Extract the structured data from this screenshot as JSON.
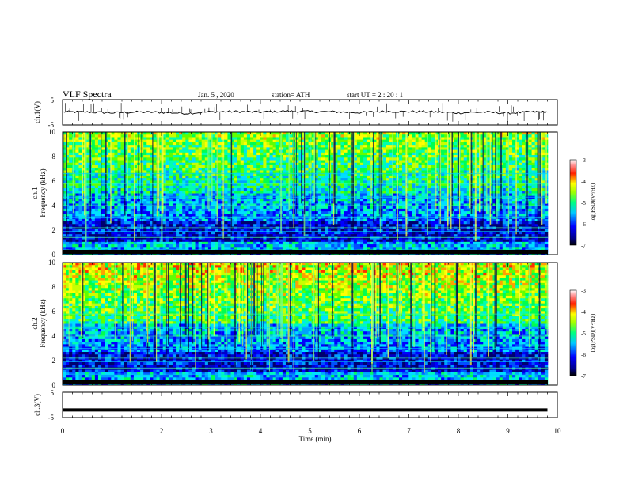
{
  "header": {
    "title": "VLF  Spectra",
    "date": "Jan.  5  , 2020",
    "station": "station= ATH",
    "start": "start  UT  =    2  : 20 : 1"
  },
  "chart_data": [
    {
      "type": "line",
      "name": "ch1-waveform",
      "ylabel": "ch.1(V)",
      "ylim": [
        -5,
        5
      ],
      "yticks": [
        "5",
        "-5"
      ],
      "xlim": [
        0,
        10
      ],
      "x": [
        0,
        0.5,
        1,
        1.5,
        2,
        2.5,
        3,
        3.5,
        4,
        4.5,
        5,
        5.5,
        6,
        6.5,
        7,
        7.5,
        8,
        8.5,
        9,
        9.5,
        9.8
      ],
      "values": [
        0.2,
        0.1,
        -0.2,
        0.1,
        0.0,
        -0.4,
        0.2,
        0.3,
        0.1,
        0.5,
        0.3,
        0.2,
        -0.1,
        0.4,
        0.3,
        0.2,
        -0.2,
        0.1,
        -0.3,
        0.2,
        0.1
      ]
    },
    {
      "type": "heatmap",
      "name": "ch1-spectrogram",
      "ylabel": "ch.1\nFrequency  (kHz)",
      "ylim": [
        0,
        10
      ],
      "yticks": [
        "0",
        "2",
        "4",
        "6",
        "8",
        "10"
      ],
      "xlim": [
        0,
        9.8
      ],
      "colorbar": {
        "label": "log(PSD)(V²/Hz)",
        "range": [
          -7,
          -3
        ],
        "ticks": [
          "-3",
          "-4",
          "-5",
          "-6",
          "-7"
        ]
      }
    },
    {
      "type": "heatmap",
      "name": "ch2-spectrogram",
      "ylabel": "ch.2\nFrequency  (kHz)",
      "ylim": [
        0,
        10
      ],
      "yticks": [
        "0",
        "2",
        "4",
        "6",
        "8",
        "10"
      ],
      "xlim": [
        0,
        9.8
      ],
      "colorbar": {
        "label": "log(PSD)(V²/Hz)",
        "range": [
          -7,
          -3
        ],
        "ticks": [
          "-3",
          "-4",
          "-5",
          "-6",
          "-7"
        ]
      }
    },
    {
      "type": "line",
      "name": "ch3-waveform",
      "ylabel": "ch.3(V)",
      "ylim": [
        -5,
        5
      ],
      "yticks": [
        "5",
        "-5"
      ],
      "xlim": [
        0,
        10
      ],
      "x": [
        0,
        9.8
      ],
      "values": [
        -2,
        -2
      ]
    }
  ],
  "xaxis": {
    "label": "Time  (min)",
    "ticks": [
      "0",
      "1",
      "2",
      "3",
      "4",
      "5",
      "6",
      "7",
      "8",
      "9",
      "10"
    ]
  }
}
